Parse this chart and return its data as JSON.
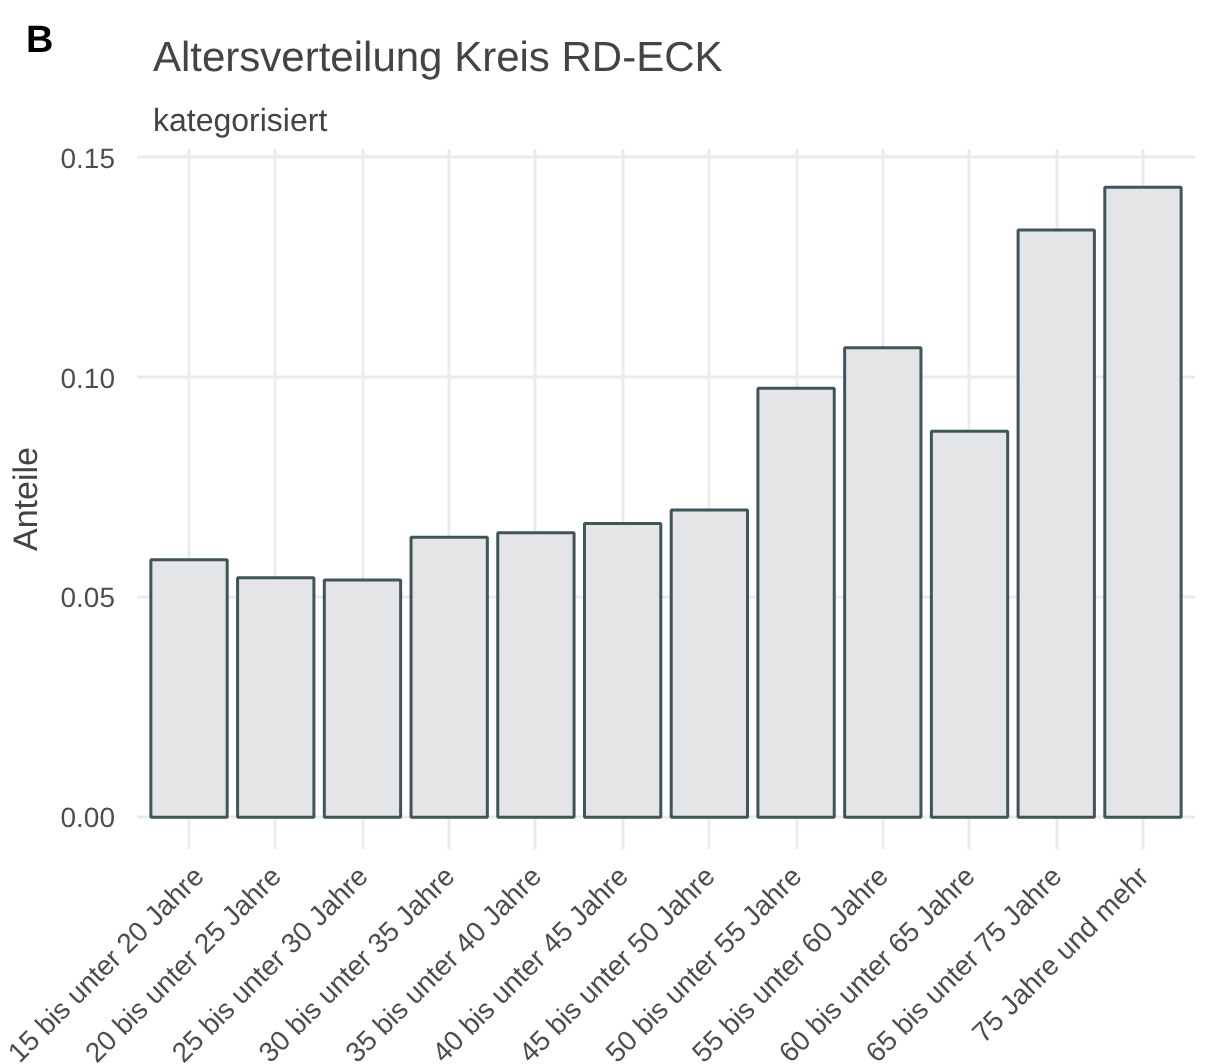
{
  "chart_data": {
    "type": "bar",
    "title": "Altersverteilung Kreis RD-ECK",
    "subtitle": "kategorisiert",
    "ylabel": "Anteile",
    "annotations": [
      "B"
    ],
    "categories": [
      "15 bis unter 20 Jahre",
      "20 bis unter 25 Jahre",
      "25 bis unter 30 Jahre",
      "30 bis unter 35 Jahre",
      "35 bis unter 40 Jahre",
      "40 bis unter 45 Jahre",
      "45 bis unter 50 Jahre",
      "50 bis unter 55 Jahre",
      "55 bis unter 60 Jahre",
      "60 bis unter 65 Jahre",
      "65 bis unter 75 Jahre",
      "75 Jahre und mehr"
    ],
    "values": [
      0.0586,
      0.0545,
      0.054,
      0.0637,
      0.0647,
      0.0668,
      0.0699,
      0.0976,
      0.1068,
      0.0878,
      0.1336,
      0.1433
    ],
    "color": "#e4e5e6",
    "ylim": [
      -0.0072,
      0.152
    ],
    "yticks": [
      {
        "value": 0,
        "label": "0.00"
      },
      {
        "value": 0.05,
        "label": "0.05"
      },
      {
        "value": 0.1,
        "label": "0.10"
      },
      {
        "value": 0.15,
        "label": "0.15"
      }
    ],
    "grid": true
  }
}
